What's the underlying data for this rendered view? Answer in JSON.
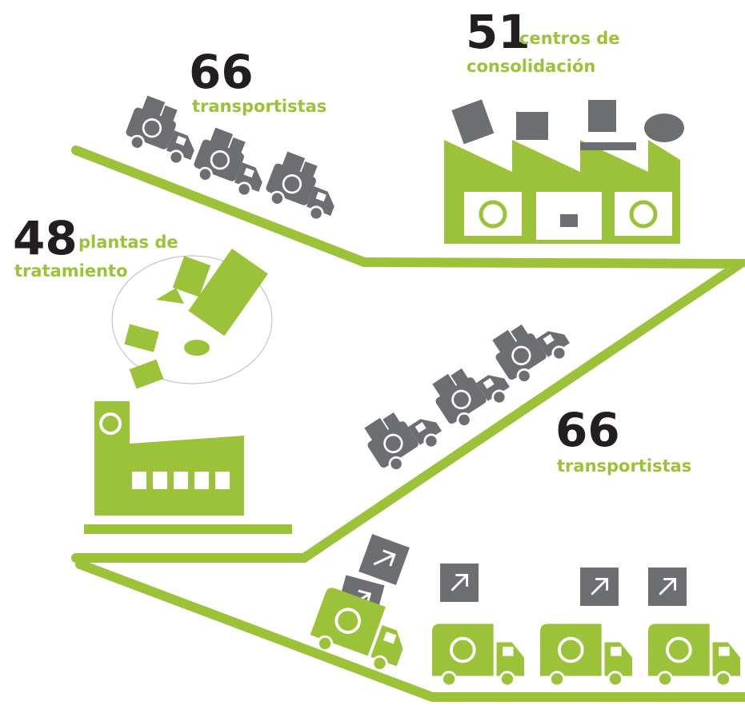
{
  "stats": [
    {
      "number": 66,
      "label_lines": [
        "transportistas"
      ]
    },
    {
      "number": 51,
      "label_lines": [
        "centros de",
        "consolidación"
      ]
    },
    {
      "number": 48,
      "label_lines": [
        "plantas de",
        "tratamiento"
      ]
    },
    {
      "number": 66,
      "label_lines": [
        "transportistas"
      ]
    }
  ]
}
